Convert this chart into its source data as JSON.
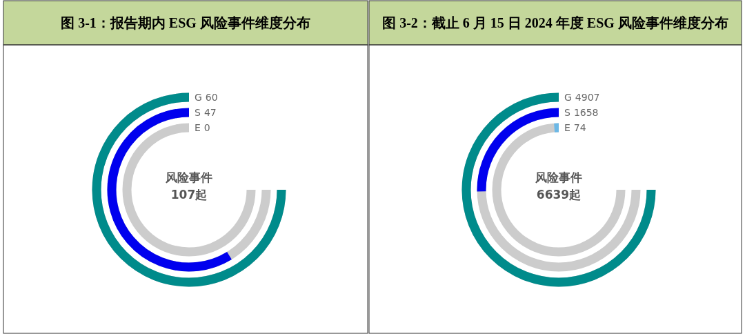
{
  "chart_data": [
    {
      "type": "other",
      "title": "图 3-1：报告期内 ESG 风险事件维度分布",
      "categories": [
        "G",
        "S",
        "E"
      ],
      "values": [
        60,
        47,
        0
      ],
      "colors": [
        "#008b8b",
        "#0000ee",
        "#6cb8e6"
      ],
      "data_labels": true,
      "annotations": [
        "风险事件",
        "107起"
      ]
    },
    {
      "type": "other",
      "title": "图 3-2：截止 6 月 15 日 2024 年度 ESG 风险事件维度分布",
      "categories": [
        "G",
        "S",
        "E"
      ],
      "values": [
        4907,
        1658,
        74
      ],
      "colors": [
        "#008b8b",
        "#0000ee",
        "#6cb8e6"
      ],
      "data_labels": true,
      "annotations": [
        "风险事件",
        "6639起"
      ]
    }
  ]
}
